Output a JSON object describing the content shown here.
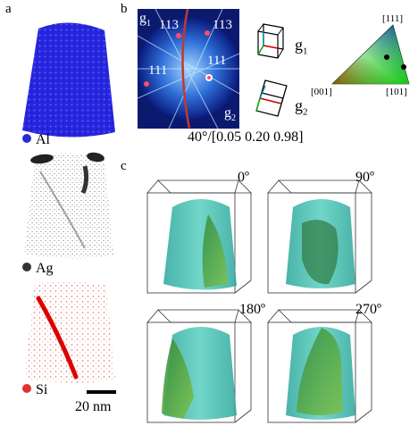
{
  "panels": {
    "a": {
      "label": "a"
    },
    "b": {
      "label": "b"
    },
    "c": {
      "label": "c"
    }
  },
  "elements": [
    {
      "symbol": "Al",
      "color": "#2b2bd6"
    },
    {
      "symbol": "Ag",
      "color": "#333333"
    },
    {
      "symbol": "Si",
      "color": "#e03030"
    }
  ],
  "scale_bar": {
    "label": "20 nm"
  },
  "kikuchi": {
    "grain_1": {
      "name": "g",
      "sub": "1"
    },
    "grain_2": {
      "name": "g",
      "sub": "2"
    },
    "pole_labels": [
      "113",
      "113",
      "111",
      "111"
    ],
    "misorientation": "40°/[0.05 0.20 0.98]"
  },
  "ipf": {
    "corner_top": "[111]",
    "corner_left": "[001]",
    "corner_right": "[101]"
  },
  "cube_labels": [
    {
      "name": "g",
      "sub": "1"
    },
    {
      "name": "g",
      "sub": "2"
    }
  ],
  "rotations": [
    "0º",
    "90º",
    "180º",
    "270º"
  ],
  "colors": {
    "al": "#2b2bd6",
    "ag": "#222222",
    "si": "#e02020",
    "iso_surface": "#3fb8a8",
    "boundary": "#8fc840"
  }
}
